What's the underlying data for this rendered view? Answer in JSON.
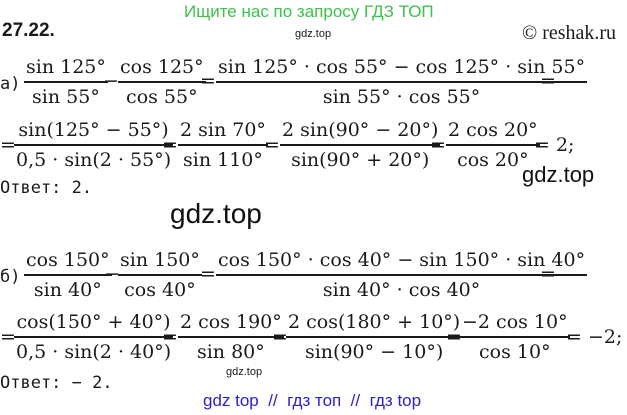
{
  "header": {
    "banner": "Ищите нас по запросу ГДЗ ТОП",
    "small_watermark": "gdz.top",
    "copyright": "© reshak.ru",
    "problem_number": "27.22."
  },
  "watermarks": {
    "right": "gdz.top",
    "middle": "gdz.top",
    "bottom_small": "gdz.top"
  },
  "part_a": {
    "label": "а)",
    "line1": {
      "f1_num": "sin 125°",
      "f1_den": "sin 55°",
      "op1": "−",
      "f2_num": "cos 125°",
      "f2_den": "cos 55°",
      "eq1": "=",
      "f3_num": "sin 125° · cos 55° − cos 125° · sin 55°",
      "f3_den": "sin 55° · cos 55°",
      "eq2": "="
    },
    "line2": {
      "eq0": "=",
      "f1_num": "sin(125° − 55°)",
      "f1_den": "0,5 · sin(2 · 55°)",
      "eq1": "=",
      "f2_num": "2 sin 70°",
      "f2_den": "sin 110°",
      "eq2": "=",
      "f3_num": "2 sin(90° − 20°)",
      "f3_den": "sin(90° + 20°)",
      "eq3": "=",
      "f4_num": "2 cos 20°",
      "f4_den": "cos 20°",
      "tail": "= 2;"
    },
    "answer": "Ответ:  2."
  },
  "part_b": {
    "label": "б)",
    "line1": {
      "f1_num": "cos 150°",
      "f1_den": "sin 40°",
      "op1": "−",
      "f2_num": "sin 150°",
      "f2_den": "cos 40°",
      "eq1": "=",
      "f3_num": "cos 150° · cos 40° − sin 150° · sin 40°",
      "f3_den": "sin 40° · cos 40°",
      "eq2": "="
    },
    "line2": {
      "eq0": "=",
      "f1_num": "cos(150° + 40°)",
      "f1_den": "0,5 · sin(2 · 40°)",
      "eq1": "=",
      "f2_num": "2 cos 190°",
      "f2_den": "sin 80°",
      "eq2": "=",
      "f3_num": "2 cos(180° + 10°)",
      "f3_den": "sin(90° − 10°)",
      "eq3": "=",
      "f4_num": "−2 cos 10°",
      "f4_den": "cos 10°",
      "tail": "= −2;"
    },
    "answer": "Ответ:  − 2."
  },
  "footer": {
    "text": "gdz top  //  гдз топ  //  гдз top"
  },
  "colors": {
    "banner_green": "#3cc24a",
    "footer_blue": "#2b22c8",
    "text": "#1a1a1a"
  }
}
